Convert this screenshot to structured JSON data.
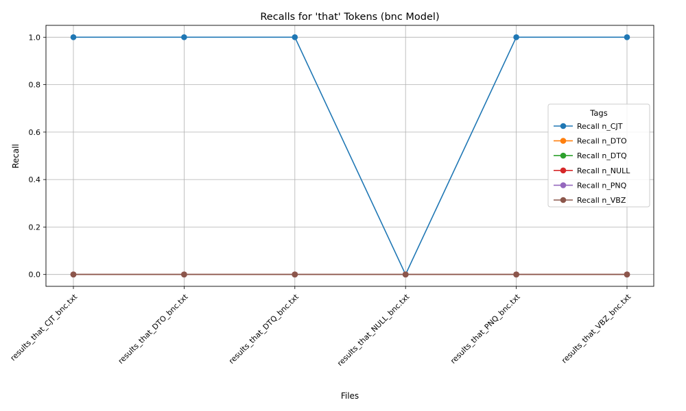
{
  "chart_data": {
    "type": "line",
    "title": "Recalls for 'that' Tokens (bnc Model)",
    "xlabel": "Files",
    "ylabel": "Recall",
    "categories": [
      "results_that_CJT_bnc.txt",
      "results_that_DTO_bnc.txt",
      "results_that_DTQ_bnc.txt",
      "results_that_NULL_bnc.txt",
      "results_that_PNQ_bnc.txt",
      "results_that_VBZ_bnc.txt"
    ],
    "ylim": [
      -0.05,
      1.05
    ],
    "yticks": [
      "0.0",
      "0.2",
      "0.4",
      "0.6",
      "0.8",
      "1.0"
    ],
    "grid": true,
    "legend": {
      "title": "Tags",
      "placement": "center-right"
    },
    "series": [
      {
        "name": "Recall n_CJT",
        "color": "#1f77b4",
        "values": [
          1,
          1,
          1,
          0,
          1,
          1
        ]
      },
      {
        "name": "Recall n_DTO",
        "color": "#ff7f0e",
        "values": [
          0,
          0,
          0,
          0,
          0,
          0
        ]
      },
      {
        "name": "Recall n_DTQ",
        "color": "#2ca02c",
        "values": [
          0,
          0,
          0,
          0,
          0,
          0
        ]
      },
      {
        "name": "Recall n_NULL",
        "color": "#d62728",
        "values": [
          0,
          0,
          0,
          0,
          0,
          0
        ]
      },
      {
        "name": "Recall n_PNQ",
        "color": "#9467bd",
        "values": [
          0,
          0,
          0,
          0,
          0,
          0
        ]
      },
      {
        "name": "Recall n_VBZ",
        "color": "#8c564b",
        "values": [
          0,
          0,
          0,
          0,
          0,
          0
        ]
      }
    ]
  }
}
